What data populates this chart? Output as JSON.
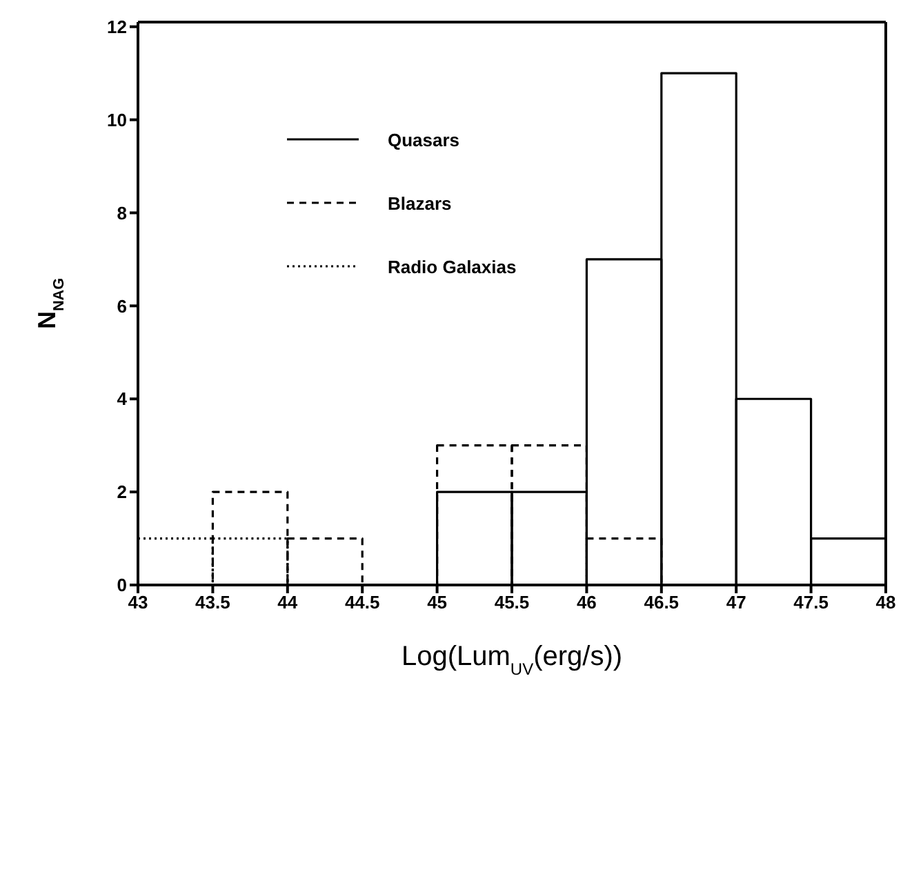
{
  "chart_data": {
    "type": "histogram",
    "xlabel": "Log(Lum$_{UV}$(erg/s))",
    "ylabel": "N$_{NAG}$",
    "bins": [
      43,
      43.5,
      44,
      44.5,
      45,
      45.5,
      46,
      46.5,
      47,
      47.5,
      48
    ],
    "series": [
      {
        "name": "Quasars",
        "color": "#000000",
        "line_style": "solid",
        "values": [
          0,
          0,
          0,
          0,
          2,
          2,
          7,
          11,
          4,
          1
        ]
      },
      {
        "name": "Blazars",
        "color": "#000000",
        "line_style": "dashed",
        "values": [
          0,
          2,
          1,
          0,
          3,
          3,
          1,
          0,
          0,
          0
        ]
      },
      {
        "name": "Radio Galaxias",
        "color": "#000000",
        "line_style": "dotted",
        "values": [
          1,
          1,
          0,
          0,
          0,
          0,
          0,
          0,
          0,
          0
        ]
      }
    ],
    "xlim": [
      43,
      48
    ],
    "xticks": [
      43,
      43.5,
      44,
      44.5,
      45,
      45.5,
      46,
      46.5,
      47,
      47.5,
      48
    ],
    "ylim": [
      0,
      12.1
    ],
    "yticks": [
      0,
      2,
      4,
      6,
      8,
      10,
      12
    ],
    "grid": false,
    "legend": "top left"
  }
}
